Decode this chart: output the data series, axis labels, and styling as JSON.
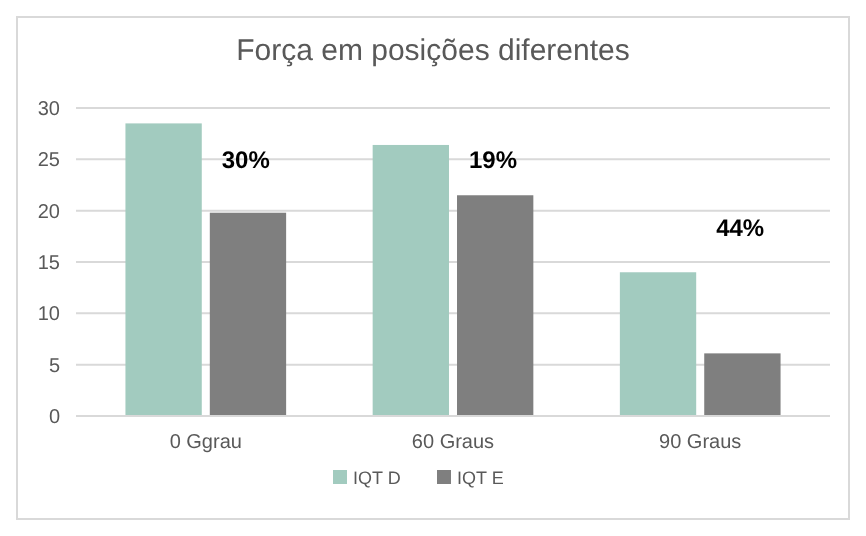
{
  "chart_data": {
    "type": "bar",
    "title": "Força em posições diferentes",
    "categories": [
      "0 Ggrau",
      "60 Graus",
      "90 Graus"
    ],
    "series": [
      {
        "name": "IQT D",
        "color": "#a2cbbf",
        "values": [
          28.5,
          26.4,
          14
        ]
      },
      {
        "name": "IQT E",
        "color": "#7f7f7f",
        "values": [
          19.8,
          21.5,
          6.1
        ]
      }
    ],
    "ylim": [
      0,
      30
    ],
    "yticks": [
      0,
      5,
      10,
      15,
      20,
      25,
      30
    ],
    "grid": "y",
    "legend": "bottom",
    "annotations": [
      "30%",
      "19%",
      "44%"
    ]
  }
}
